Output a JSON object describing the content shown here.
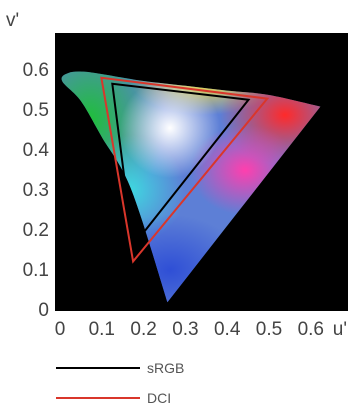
{
  "chart_data": {
    "type": "area",
    "title": "",
    "xlabel": "u'",
    "ylabel": "v'",
    "xlim": [
      0,
      0.62
    ],
    "ylim": [
      0,
      0.62
    ],
    "x_ticks": [
      "0",
      "0.1",
      "0.2",
      "0.3",
      "0.4",
      "0.5",
      "0.6"
    ],
    "y_ticks": [
      "0",
      "0.1",
      "0.2",
      "0.3",
      "0.4",
      "0.5",
      "0.6"
    ],
    "grid": false,
    "legend_position": "bottom",
    "background_color": "#000000",
    "spectral_locus": [
      [
        0.257,
        0.017
      ],
      [
        0.17,
        0.3
      ],
      [
        0.1,
        0.43
      ],
      [
        0.05,
        0.52
      ],
      [
        0.005,
        0.57
      ],
      [
        0.02,
        0.59
      ],
      [
        0.06,
        0.593
      ],
      [
        0.13,
        0.582
      ],
      [
        0.2,
        0.57
      ],
      [
        0.3,
        0.558
      ],
      [
        0.4,
        0.546
      ],
      [
        0.5,
        0.535
      ],
      [
        0.623,
        0.506
      ]
    ],
    "series": [
      {
        "name": "sRGB",
        "color": "#000000",
        "points": [
          [
            0.451,
            0.523
          ],
          [
            0.125,
            0.563
          ],
          [
            0.175,
            0.158
          ]
        ]
      },
      {
        "name": "DCI",
        "color": "#d9362b",
        "points": [
          [
            0.496,
            0.526
          ],
          [
            0.099,
            0.578
          ],
          [
            0.175,
            0.119
          ]
        ]
      }
    ]
  }
}
